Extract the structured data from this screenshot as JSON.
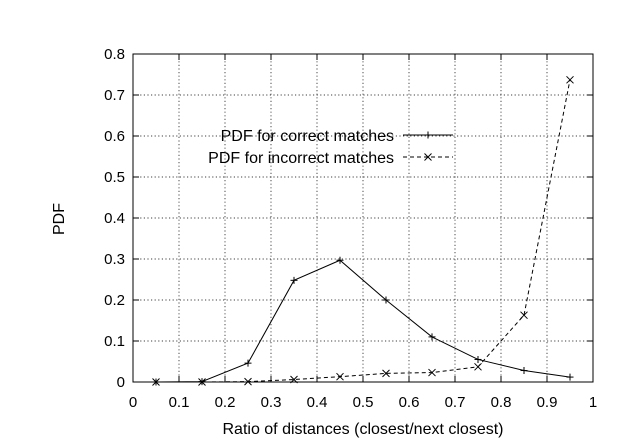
{
  "chart_data": {
    "type": "line",
    "xlabel": "Ratio of distances (closest/next closest)",
    "ylabel": "PDF",
    "xlim": [
      0,
      1
    ],
    "ylim": [
      0,
      0.8
    ],
    "xticks": [
      "0",
      "0.1",
      "0.2",
      "0.3",
      "0.4",
      "0.5",
      "0.6",
      "0.7",
      "0.8",
      "0.9",
      "1"
    ],
    "yticks": [
      "0",
      "0.1",
      "0.2",
      "0.3",
      "0.4",
      "0.5",
      "0.6",
      "0.7",
      "0.8"
    ],
    "grid": true,
    "legend_position": "upper-center",
    "series": [
      {
        "name": "PDF for correct matches",
        "marker": "plus",
        "line_style": "solid",
        "x": [
          0.05,
          0.15,
          0.25,
          0.35,
          0.45,
          0.55,
          0.65,
          0.75,
          0.85,
          0.95
        ],
        "y": [
          0.0,
          0.001,
          0.046,
          0.248,
          0.297,
          0.2,
          0.11,
          0.055,
          0.028,
          0.012
        ]
      },
      {
        "name": "PDF for incorrect matches",
        "marker": "x",
        "line_style": "dashed",
        "x": [
          0.05,
          0.15,
          0.25,
          0.35,
          0.45,
          0.55,
          0.65,
          0.75,
          0.85,
          0.95
        ],
        "y": [
          0.0,
          0.0,
          0.001,
          0.006,
          0.013,
          0.021,
          0.023,
          0.037,
          0.163,
          0.737
        ]
      }
    ]
  }
}
